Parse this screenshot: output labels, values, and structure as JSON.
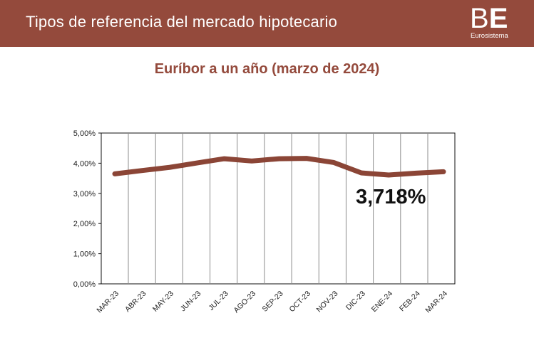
{
  "header": {
    "title": "Tipos de referencia del mercado hipotecario",
    "logo_b": "B",
    "logo_e": "E",
    "logo_sub": "Eurosistema"
  },
  "colors": {
    "brand": "#944a3c",
    "series": "#8b4536",
    "grid": "#8c8c8c"
  },
  "chart_data": {
    "type": "line",
    "title": "Euríbor a un año (marzo de 2024)",
    "categories": [
      "MAR-23",
      "ABR-23",
      "MAY-23",
      "JUN-23",
      "JUL-23",
      "AGO-23",
      "SEP-23",
      "OCT-23",
      "NOV-23",
      "DIC-23",
      "ENE-24",
      "FEB-24",
      "MAR-24"
    ],
    "series": [
      {
        "values": [
          3.647,
          3.757,
          3.862,
          4.007,
          4.149,
          4.073,
          4.149,
          4.16,
          4.022,
          3.679,
          3.609,
          3.671,
          3.718
        ]
      }
    ],
    "yticks": [
      "0,00%",
      "1,00%",
      "2,00%",
      "3,00%",
      "4,00%",
      "5,00%"
    ],
    "ylim": [
      0,
      5
    ],
    "grid": "vertical",
    "annotation": "3,718%"
  }
}
